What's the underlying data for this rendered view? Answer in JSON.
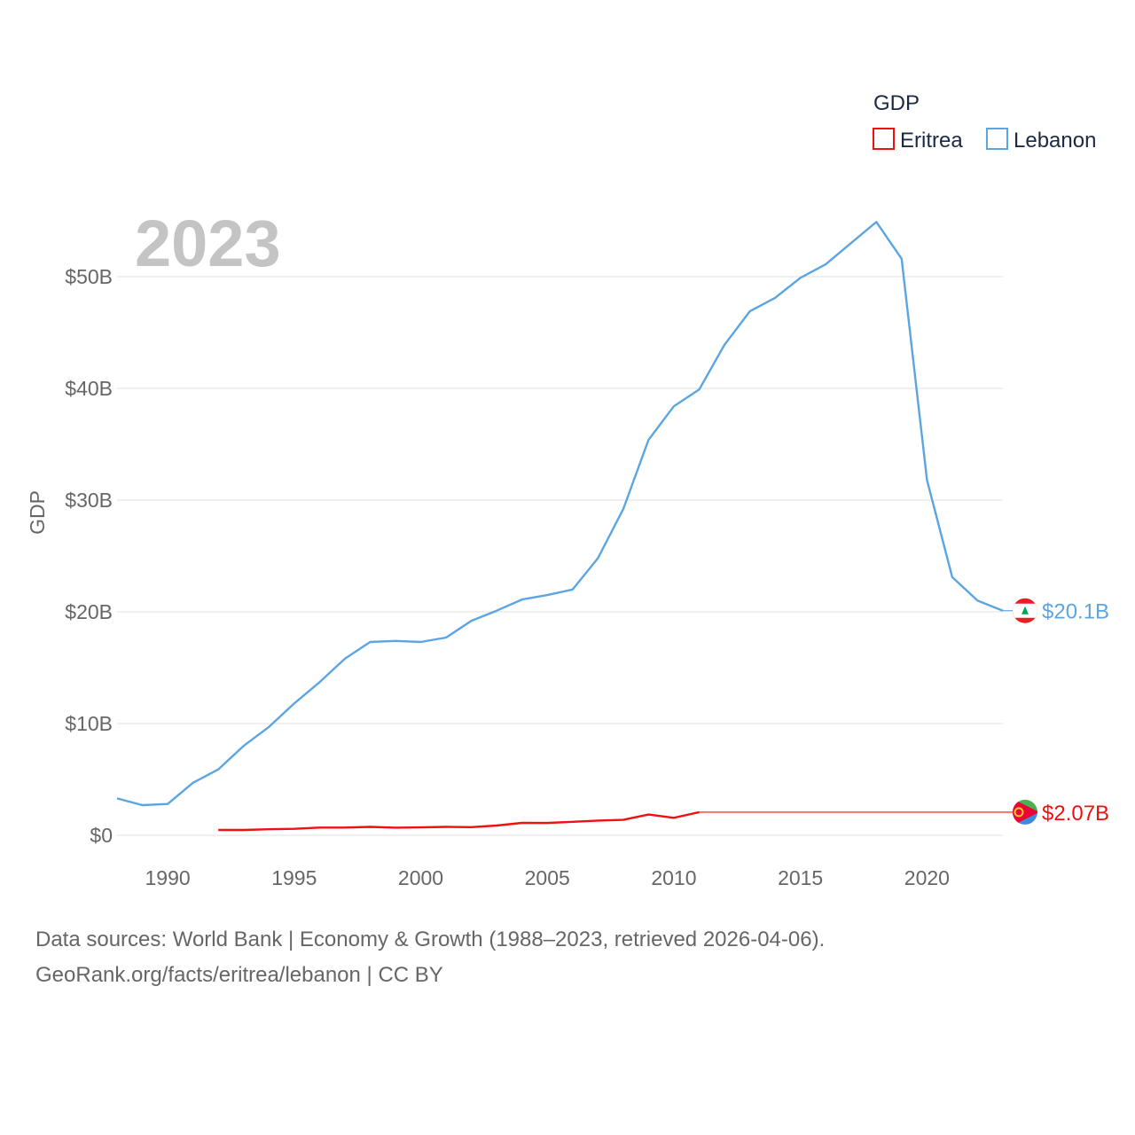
{
  "chart_data": {
    "type": "line",
    "year": "2023",
    "ylabel": "GDP",
    "legend_title": "GDP",
    "ylim": [
      0,
      55000000000
    ],
    "xlim": [
      1988,
      2023
    ],
    "yticks": [
      {
        "value": 0,
        "label": "$0"
      },
      {
        "value": 10000000000,
        "label": "$10B"
      },
      {
        "value": 20000000000,
        "label": "$20B"
      },
      {
        "value": 30000000000,
        "label": "$30B"
      },
      {
        "value": 40000000000,
        "label": "$40B"
      },
      {
        "value": 50000000000,
        "label": "$50B"
      }
    ],
    "xticks": [
      {
        "value": 1990,
        "label": "1990"
      },
      {
        "value": 1995,
        "label": "1995"
      },
      {
        "value": 2000,
        "label": "2000"
      },
      {
        "value": 2005,
        "label": "2005"
      },
      {
        "value": 2010,
        "label": "2010"
      },
      {
        "value": 2015,
        "label": "2015"
      },
      {
        "value": 2020,
        "label": "2020"
      }
    ],
    "series": [
      {
        "name": "Eritrea",
        "color": "#ee1111",
        "end_label": "$2.07B",
        "end_value": 2070000000,
        "x": [
          1992,
          1993,
          1994,
          1995,
          1996,
          1997,
          1998,
          1999,
          2000,
          2001,
          2002,
          2003,
          2004,
          2005,
          2006,
          2007,
          2008,
          2009,
          2010,
          2011
        ],
        "values": [
          480000000,
          480000000,
          540000000,
          580000000,
          690000000,
          690000000,
          750000000,
          680000000,
          710000000,
          750000000,
          730000000,
          870000000,
          1110000000,
          1100000000,
          1210000000,
          1320000000,
          1380000000,
          1860000000,
          1560000000,
          2070000000
        ]
      },
      {
        "name": "Lebanon",
        "color": "#5ba5e2",
        "end_label": "$20.1B",
        "end_value": 20100000000,
        "x": [
          1988,
          1989,
          1990,
          1991,
          1992,
          1993,
          1994,
          1995,
          1996,
          1997,
          1998,
          1999,
          2000,
          2001,
          2002,
          2003,
          2004,
          2005,
          2006,
          2007,
          2008,
          2009,
          2010,
          2011,
          2012,
          2013,
          2014,
          2015,
          2016,
          2017,
          2018,
          2019,
          2020,
          2021,
          2022,
          2023
        ],
        "values": [
          3300000000,
          2700000000,
          2800000000,
          4700000000,
          5900000000,
          8000000000,
          9700000000,
          11800000000,
          13700000000,
          15800000000,
          17300000000,
          17400000000,
          17300000000,
          17700000000,
          19200000000,
          20100000000,
          21100000000,
          21500000000,
          22000000000,
          24800000000,
          29200000000,
          35400000000,
          38400000000,
          39900000000,
          43900000000,
          46900000000,
          48100000000,
          49900000000,
          51100000000,
          53000000000,
          54900000000,
          51600000000,
          31800000000,
          23100000000,
          21000000000,
          20100000000
        ]
      }
    ]
  },
  "source": {
    "line1": "Data sources: World Bank | Economy & Growth (1988–2023, retrieved 2026-04-06).",
    "line2": "GeoRank.org/facts/eritrea/lebanon | CC BY"
  }
}
